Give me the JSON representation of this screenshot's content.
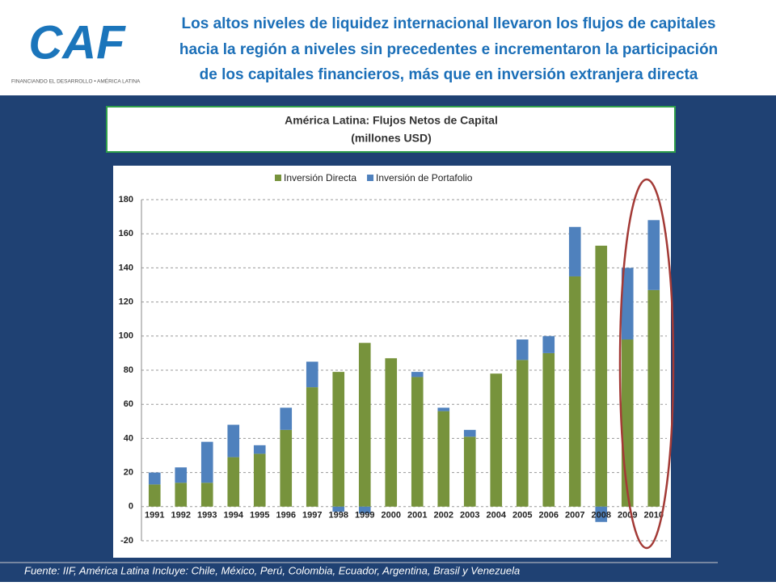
{
  "header": {
    "title_lines": [
      "Los altos niveles de liquidez internacional llevaron los flujos de capitales",
      "hacia la región a niveles sin precedentes e incrementaron la participación",
      "de los capitales financieros, más que en inversión extranjera directa"
    ],
    "logo": {
      "mark": "CAF",
      "tagline": "FINANCIANDO EL DESARROLLO • AMÉRICA LATINA"
    }
  },
  "chart_data": {
    "type": "stacked_bar",
    "title": "América Latina: Flujos Netos de Capital",
    "subtitle": "(millones USD)",
    "categories": [
      "1991",
      "1992",
      "1993",
      "1994",
      "1995",
      "1996",
      "1997",
      "1998",
      "1999",
      "2000",
      "2001",
      "2002",
      "2003",
      "2004",
      "2005",
      "2006",
      "2007",
      "2008",
      "2009",
      "2010"
    ],
    "series": [
      {
        "name": "Inversión Directa",
        "color": "#77933c",
        "values": [
          13,
          14,
          14,
          29,
          31,
          45,
          70,
          79,
          96,
          87,
          76,
          56,
          41,
          78,
          86,
          90,
          135,
          153,
          98,
          127
        ]
      },
      {
        "name": "Inversión de Portafolio",
        "color": "#4f81bd",
        "values": [
          7,
          9,
          24,
          19,
          5,
          13,
          15,
          -3,
          -4,
          0,
          3,
          2,
          4,
          0,
          12,
          10,
          29,
          -9,
          42,
          41
        ]
      }
    ],
    "ylim": [
      -20,
      180
    ],
    "yticks": [
      -20,
      0,
      20,
      40,
      60,
      80,
      100,
      120,
      140,
      160,
      180
    ],
    "grid": true,
    "legend": "top"
  },
  "footer": {
    "source": "Fuente: IIF, América Latina Incluye: Chile, México, Perú, Colombia, Ecuador, Argentina, Brasil y Venezuela"
  }
}
